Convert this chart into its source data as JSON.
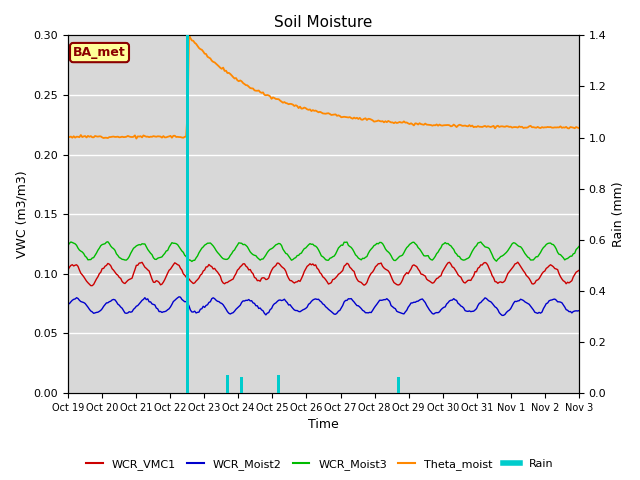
{
  "title": "Soil Moisture",
  "ylabel_left": "VWC (m3/m3)",
  "ylabel_right": "Rain (mm)",
  "xlabel": "Time",
  "annotation": "BA_met",
  "ylim_left": [
    0.0,
    0.3
  ],
  "ylim_right": [
    0.0,
    1.4
  ],
  "plot_bg_color": "#d8d8d8",
  "fig_bg_color": "#ffffff",
  "legend_entries": [
    "WCR_VMC1",
    "WCR_Moist2",
    "WCR_Moist3",
    "Theta_moist",
    "Rain"
  ],
  "line_colors": {
    "WCR_VMC1": "#cc0000",
    "WCR_Moist2": "#0000cc",
    "WCR_Moist3": "#00bb00",
    "Theta_moist": "#ff8800",
    "Rain": "#00cccc"
  },
  "n_points": 360,
  "x_tick_labels": [
    "Oct 19",
    "Oct 20",
    "Oct 21",
    "Oct 22",
    "Oct 23",
    "Oct 24",
    "Oct 25",
    "Oct 26",
    "Oct 27",
    "Oct 28",
    "Oct 29",
    "Oct 30",
    "Oct 31",
    "Nov 1",
    "Nov 2",
    "Nov 3"
  ],
  "rain_spikes": [
    {
      "day": 3.5,
      "val": 1.4
    },
    {
      "day": 4.7,
      "val": 0.07
    },
    {
      "day": 5.1,
      "val": 0.065
    },
    {
      "day": 6.2,
      "val": 0.07
    },
    {
      "day": 9.7,
      "val": 0.065
    }
  ],
  "theta_before": 0.215,
  "theta_peak": 0.3,
  "theta_after": 0.222,
  "theta_decay": 0.45,
  "vmc1_base": 0.1,
  "vmc1_amp": 0.008,
  "moist2_base": 0.073,
  "moist2_amp": 0.006,
  "moist3_base": 0.119,
  "moist3_amp": 0.007
}
